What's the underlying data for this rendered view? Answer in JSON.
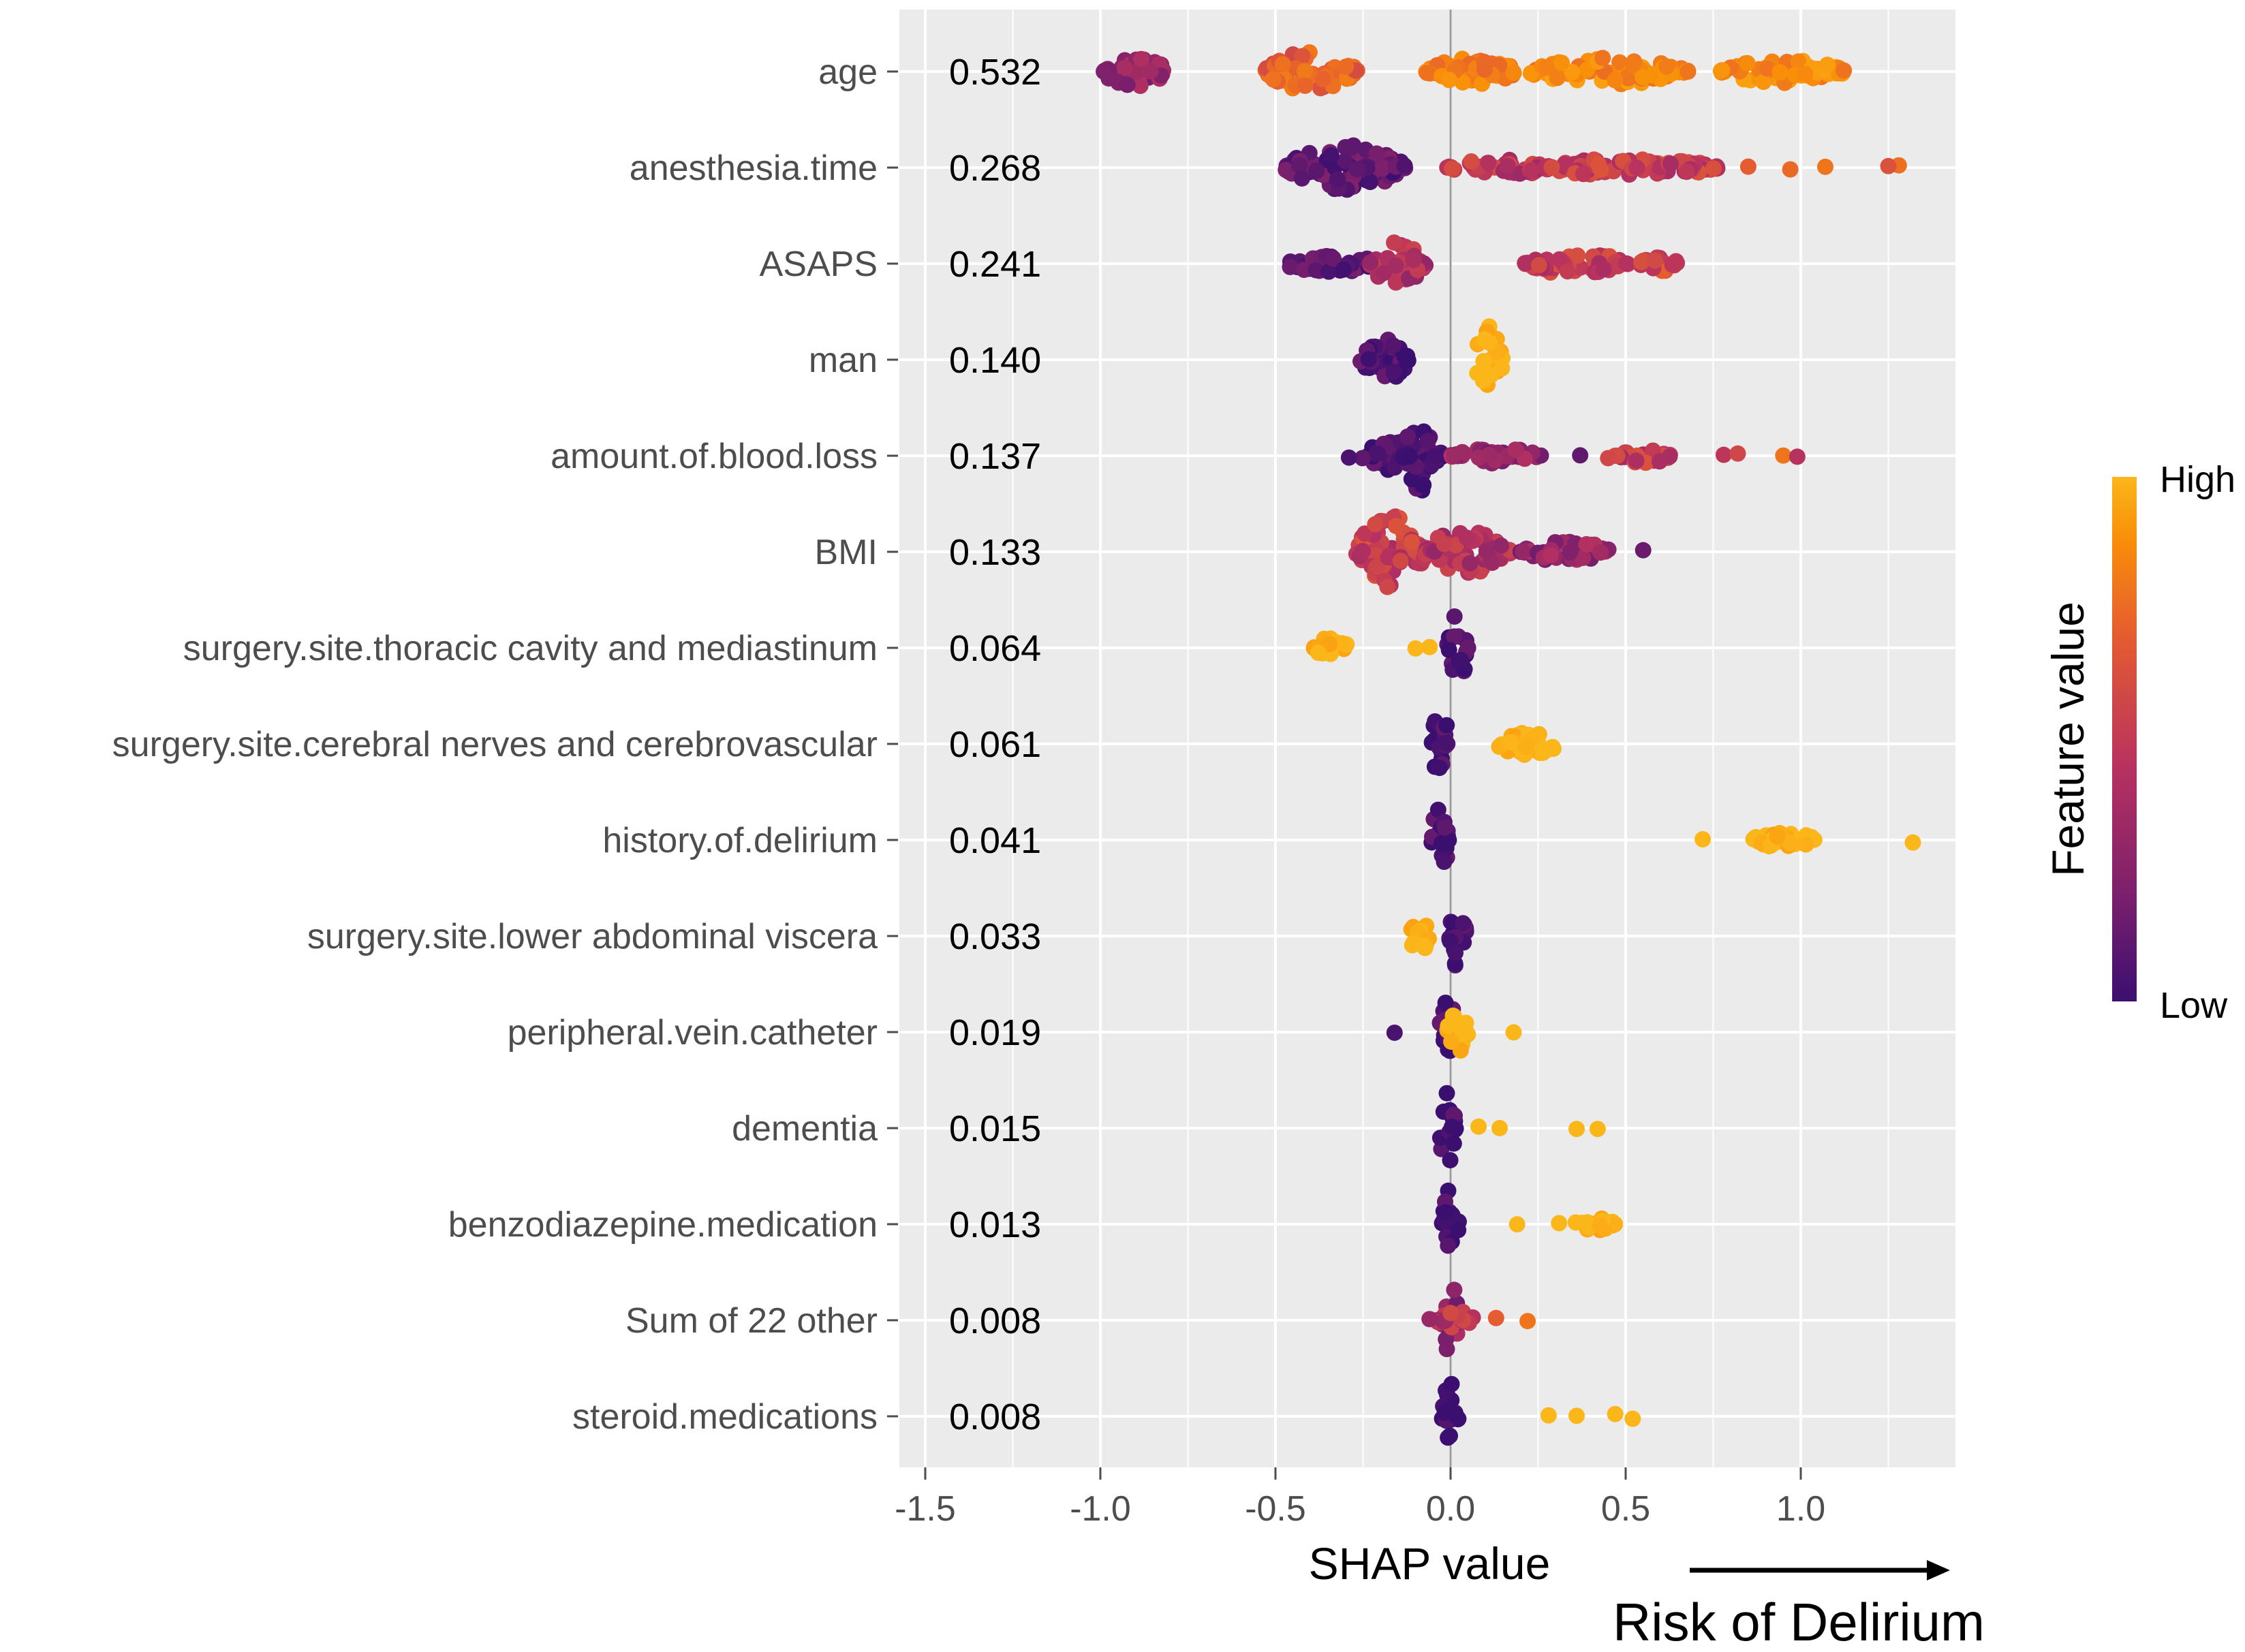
{
  "chart_data": {
    "type": "scatter",
    "subtype": "shap-beeswarm",
    "xlabel": "SHAP value",
    "xlim": [
      -1.55,
      1.45
    ],
    "x_ticks": [
      -1.5,
      -1.0,
      -0.5,
      0.0,
      0.5,
      1.0
    ],
    "x_tick_labels": [
      "-1.5",
      "-1.0",
      "-0.5",
      "0.0",
      "0.5",
      "1.0"
    ],
    "direction_label": "Risk of Delirium",
    "legend": {
      "title": "Feature value",
      "high_label": "High",
      "low_label": "Low",
      "colors": [
        "#3b0f70",
        "#7a1f6d",
        "#b8325f",
        "#e55c30",
        "#f98e09",
        "#fbb61a"
      ]
    },
    "features": [
      {
        "name": "age",
        "mean_abs_shap": "0.532",
        "clusters": [
          {
            "x": -0.9,
            "w": 0.18,
            "h": 0.44,
            "v": 0.28
          },
          {
            "x": -0.4,
            "w": 0.27,
            "h": 0.48,
            "v": 0.62
          },
          {
            "x": 0.06,
            "w": 0.26,
            "h": 0.34,
            "v": 0.75
          },
          {
            "x": 0.45,
            "w": 0.46,
            "h": 0.34,
            "v": 0.78
          },
          {
            "x": 0.95,
            "w": 0.36,
            "h": 0.3,
            "v": 0.8
          }
        ],
        "outliers": []
      },
      {
        "name": "anesthesia.time",
        "mean_abs_shap": "0.268",
        "clusters": [
          {
            "x": -0.3,
            "w": 0.35,
            "h": 0.56,
            "v": 0.12
          },
          {
            "x": 0.14,
            "w": 0.3,
            "h": 0.2,
            "v": 0.42
          },
          {
            "x": 0.52,
            "w": 0.5,
            "h": 0.24,
            "v": 0.45
          }
        ],
        "outliers": [
          {
            "x": 0.85,
            "v": 0.6
          },
          {
            "x": 0.97,
            "v": 0.65
          },
          {
            "x": 1.07,
            "v": 0.7
          },
          {
            "x": 1.28,
            "v": 0.68
          },
          {
            "x": 1.25,
            "v": 0.55
          }
        ]
      },
      {
        "name": "ASAPS",
        "mean_abs_shap": "0.241",
        "clusters": [
          {
            "x": -0.34,
            "w": 0.28,
            "h": 0.22,
            "v": 0.1
          },
          {
            "x": -0.15,
            "w": 0.16,
            "h": 0.58,
            "v": 0.38
          },
          {
            "x": 0.36,
            "w": 0.3,
            "h": 0.28,
            "v": 0.45
          },
          {
            "x": 0.6,
            "w": 0.12,
            "h": 0.2,
            "v": 0.5
          }
        ],
        "outliers": []
      },
      {
        "name": "man",
        "mean_abs_shap": "0.140",
        "clusters": [
          {
            "x": -0.19,
            "w": 0.14,
            "h": 0.56,
            "v": 0.05
          },
          {
            "x": 0.11,
            "w": 0.08,
            "h": 0.86,
            "v": 1.0
          }
        ],
        "outliers": []
      },
      {
        "name": "amount.of.blood.loss",
        "mean_abs_shap": "0.137",
        "clusters": [
          {
            "x": -0.14,
            "w": 0.24,
            "h": 0.38,
            "v": 0.05
          },
          {
            "x": -0.09,
            "w": 0.09,
            "h": 0.9,
            "v": 0.03
          },
          {
            "x": 0.13,
            "w": 0.26,
            "h": 0.2,
            "v": 0.28
          },
          {
            "x": 0.55,
            "w": 0.16,
            "h": 0.2,
            "v": 0.45
          }
        ],
        "outliers": [
          {
            "x": -0.29,
            "v": 0.05
          },
          {
            "x": 0.37,
            "v": 0.12
          },
          {
            "x": 0.45,
            "v": 0.5
          },
          {
            "x": 0.78,
            "v": 0.42
          },
          {
            "x": 0.82,
            "v": 0.5
          },
          {
            "x": 0.95,
            "v": 0.7
          },
          {
            "x": 0.99,
            "v": 0.4
          }
        ]
      },
      {
        "name": "BMI",
        "mean_abs_shap": "0.133",
        "clusters": [
          {
            "x": -0.17,
            "w": 0.2,
            "h": 0.9,
            "v": 0.45
          },
          {
            "x": 0.05,
            "w": 0.25,
            "h": 0.56,
            "v": 0.38
          },
          {
            "x": 0.33,
            "w": 0.26,
            "h": 0.26,
            "v": 0.28
          }
        ],
        "outliers": [
          {
            "x": 0.55,
            "v": 0.15
          }
        ]
      },
      {
        "name": "surgery.site.thoracic cavity and mediastinum",
        "mean_abs_shap": "0.064",
        "clusters": [
          {
            "x": -0.34,
            "w": 0.1,
            "h": 0.26,
            "v": 1.0
          },
          {
            "x": 0.02,
            "w": 0.06,
            "h": 0.86,
            "v": 0.03
          }
        ],
        "outliers": [
          {
            "x": -0.1,
            "v": 1.0
          },
          {
            "x": -0.06,
            "v": 1.0
          }
        ]
      },
      {
        "name": "surgery.site.cerebral nerves and cerebrovascular",
        "mean_abs_shap": "0.061",
        "clusters": [
          {
            "x": -0.03,
            "w": 0.05,
            "h": 0.9,
            "v": 0.03
          },
          {
            "x": 0.22,
            "w": 0.18,
            "h": 0.28,
            "v": 1.0
          }
        ],
        "outliers": []
      },
      {
        "name": "history.of.delirium",
        "mean_abs_shap": "0.041",
        "clusters": [
          {
            "x": -0.03,
            "w": 0.05,
            "h": 0.9,
            "v": 0.03
          },
          {
            "x": 0.95,
            "w": 0.2,
            "h": 0.18,
            "v": 1.0
          }
        ],
        "outliers": [
          {
            "x": 0.72,
            "v": 1.0
          },
          {
            "x": 1.32,
            "v": 1.0
          }
        ]
      },
      {
        "name": "surgery.site.lower abdominal viscera",
        "mean_abs_shap": "0.033",
        "clusters": [
          {
            "x": -0.09,
            "w": 0.06,
            "h": 0.46,
            "v": 1.0
          },
          {
            "x": 0.02,
            "w": 0.05,
            "h": 0.9,
            "v": 0.03
          }
        ],
        "outliers": []
      },
      {
        "name": "peripheral.vein.catheter",
        "mean_abs_shap": "0.019",
        "clusters": [
          {
            "x": -0.01,
            "w": 0.05,
            "h": 0.9,
            "v": 0.03
          },
          {
            "x": 0.02,
            "w": 0.06,
            "h": 0.56,
            "v": 1.0
          }
        ],
        "outliers": [
          {
            "x": -0.16,
            "v": 0.05
          },
          {
            "x": 0.18,
            "v": 1.0
          }
        ]
      },
      {
        "name": "dementia",
        "mean_abs_shap": "0.015",
        "clusters": [
          {
            "x": -0.01,
            "w": 0.05,
            "h": 0.9,
            "v": 0.03
          }
        ],
        "outliers": [
          {
            "x": 0.08,
            "v": 1.0
          },
          {
            "x": 0.14,
            "v": 1.0
          },
          {
            "x": 0.36,
            "v": 1.0
          },
          {
            "x": 0.42,
            "v": 1.0
          }
        ]
      },
      {
        "name": "benzodiazepine.medication",
        "mean_abs_shap": "0.013",
        "clusters": [
          {
            "x": 0.0,
            "w": 0.05,
            "h": 0.9,
            "v": 0.03
          },
          {
            "x": 0.41,
            "w": 0.12,
            "h": 0.16,
            "v": 1.0
          }
        ],
        "outliers": [
          {
            "x": 0.19,
            "v": 1.0
          },
          {
            "x": 0.31,
            "v": 1.0
          }
        ]
      },
      {
        "name": "Sum of 22 other",
        "mean_abs_shap": "0.008",
        "clusters": [
          {
            "x": 0.0,
            "w": 0.05,
            "h": 0.9,
            "v": 0.25
          },
          {
            "x": 0.02,
            "w": 0.12,
            "h": 0.22,
            "v": 0.4
          }
        ],
        "outliers": [
          {
            "x": -0.06,
            "v": 0.3
          },
          {
            "x": 0.13,
            "v": 0.6
          },
          {
            "x": 0.22,
            "v": 0.7
          }
        ]
      },
      {
        "name": "steroid.medications",
        "mean_abs_shap": "0.008",
        "clusters": [
          {
            "x": 0.0,
            "w": 0.05,
            "h": 0.9,
            "v": 0.03
          }
        ],
        "outliers": [
          {
            "x": 0.28,
            "v": 1.0
          },
          {
            "x": 0.36,
            "v": 1.0
          },
          {
            "x": 0.47,
            "v": 1.0
          },
          {
            "x": 0.52,
            "v": 1.0
          }
        ]
      }
    ]
  }
}
